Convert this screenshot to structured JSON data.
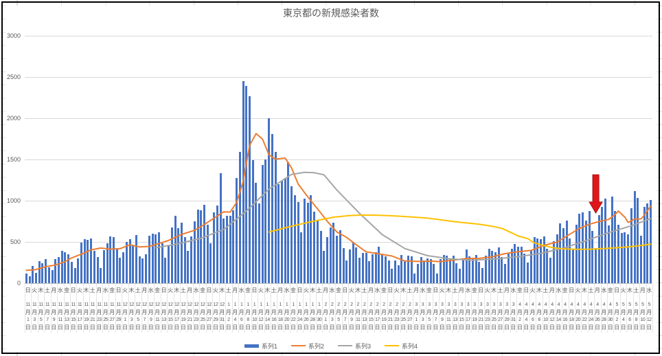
{
  "title": "東京都の新規感染者数",
  "y_axis": {
    "max": 3000,
    "ticks": [
      0,
      500,
      1000,
      1500,
      2000,
      2500,
      3000
    ]
  },
  "x_axis": {
    "month_unit": "月",
    "day_unit": "日"
  },
  "x_labels": [
    [
      "日",
      "11",
      "1"
    ],
    [
      "火",
      "11",
      "3"
    ],
    [
      "木",
      "11",
      "5"
    ],
    [
      "土",
      "11",
      "7"
    ],
    [
      "月",
      "11",
      "9"
    ],
    [
      "水",
      "11",
      "11"
    ],
    [
      "金",
      "11",
      "13"
    ],
    [
      "日",
      "11",
      "15"
    ],
    [
      "火",
      "11",
      "17"
    ],
    [
      "木",
      "11",
      "19"
    ],
    [
      "土",
      "11",
      "21"
    ],
    [
      "月",
      "11",
      "23"
    ],
    [
      "水",
      "11",
      "25"
    ],
    [
      "金",
      "11",
      "27"
    ],
    [
      "日",
      "11",
      "29"
    ],
    [
      "火",
      "12",
      "1"
    ],
    [
      "木",
      "12",
      "3"
    ],
    [
      "土",
      "12",
      "5"
    ],
    [
      "月",
      "12",
      "7"
    ],
    [
      "水",
      "12",
      "9"
    ],
    [
      "金",
      "12",
      "11"
    ],
    [
      "日",
      "12",
      "13"
    ],
    [
      "火",
      "12",
      "15"
    ],
    [
      "木",
      "12",
      "17"
    ],
    [
      "土",
      "12",
      "19"
    ],
    [
      "月",
      "12",
      "21"
    ],
    [
      "水",
      "12",
      "23"
    ],
    [
      "金",
      "12",
      "25"
    ],
    [
      "日",
      "12",
      "27"
    ],
    [
      "火",
      "12",
      "29"
    ],
    [
      "木",
      "12",
      "31"
    ],
    [
      "土",
      "1",
      "2"
    ],
    [
      "月",
      "1",
      "4"
    ],
    [
      "水",
      "1",
      "6"
    ],
    [
      "金",
      "1",
      "8"
    ],
    [
      "日",
      "1",
      "10"
    ],
    [
      "火",
      "1",
      "12"
    ],
    [
      "木",
      "1",
      "14"
    ],
    [
      "土",
      "1",
      "16"
    ],
    [
      "月",
      "1",
      "18"
    ],
    [
      "水",
      "1",
      "20"
    ],
    [
      "金",
      "1",
      "22"
    ],
    [
      "日",
      "1",
      "24"
    ],
    [
      "火",
      "1",
      "26"
    ],
    [
      "木",
      "1",
      "28"
    ],
    [
      "土",
      "1",
      "30"
    ],
    [
      "月",
      "2",
      "1"
    ],
    [
      "水",
      "2",
      "3"
    ],
    [
      "金",
      "2",
      "5"
    ],
    [
      "日",
      "2",
      "7"
    ],
    [
      "火",
      "2",
      "9"
    ],
    [
      "木",
      "2",
      "11"
    ],
    [
      "土",
      "2",
      "13"
    ],
    [
      "月",
      "2",
      "15"
    ],
    [
      "水",
      "2",
      "17"
    ],
    [
      "金",
      "2",
      "19"
    ],
    [
      "日",
      "2",
      "21"
    ],
    [
      "火",
      "2",
      "23"
    ],
    [
      "木",
      "2",
      "25"
    ],
    [
      "土",
      "2",
      "27"
    ],
    [
      "月",
      "3",
      "1"
    ],
    [
      "水",
      "3",
      "3"
    ],
    [
      "金",
      "3",
      "5"
    ],
    [
      "日",
      "3",
      "7"
    ],
    [
      "火",
      "3",
      "9"
    ],
    [
      "木",
      "3",
      "11"
    ],
    [
      "土",
      "3",
      "13"
    ],
    [
      "月",
      "3",
      "15"
    ],
    [
      "水",
      "3",
      "17"
    ],
    [
      "金",
      "3",
      "19"
    ],
    [
      "日",
      "3",
      "21"
    ],
    [
      "火",
      "3",
      "23"
    ],
    [
      "木",
      "3",
      "25"
    ],
    [
      "土",
      "3",
      "27"
    ],
    [
      "月",
      "3",
      "29"
    ],
    [
      "水",
      "3",
      "31"
    ],
    [
      "金",
      "4",
      "2"
    ],
    [
      "日",
      "4",
      "4"
    ],
    [
      "火",
      "4",
      "6"
    ],
    [
      "木",
      "4",
      "8"
    ],
    [
      "土",
      "4",
      "10"
    ],
    [
      "月",
      "4",
      "12"
    ],
    [
      "水",
      "4",
      "14"
    ],
    [
      "金",
      "4",
      "16"
    ],
    [
      "日",
      "4",
      "18"
    ],
    [
      "火",
      "4",
      "20"
    ],
    [
      "木",
      "4",
      "22"
    ],
    [
      "土",
      "4",
      "24"
    ],
    [
      "月",
      "4",
      "26"
    ],
    [
      "水",
      "4",
      "28"
    ],
    [
      "金",
      "4",
      "30"
    ],
    [
      "日",
      "5",
      "2"
    ],
    [
      "火",
      "5",
      "4"
    ],
    [
      "木",
      "5",
      "6"
    ],
    [
      "土",
      "5",
      "8"
    ],
    [
      "月",
      "5",
      "10"
    ],
    [
      "水",
      "5",
      "12"
    ]
  ],
  "legend": [
    {
      "label": "系列1",
      "type": "bar",
      "color": "#4472C4"
    },
    {
      "label": "系列2",
      "type": "line",
      "color": "#ED7D31"
    },
    {
      "label": "系列3",
      "type": "line",
      "color": "#A5A5A5"
    },
    {
      "label": "系列4",
      "type": "line",
      "color": "#FFC000"
    }
  ],
  "chart_data": {
    "type": "combo-bar-line",
    "title": "東京都の新規感染者数",
    "x_start_label": "11月1日(日)",
    "x_end_label": "5月12日(水)",
    "x_interval": "daily, labels every 2nd day",
    "n_points": 194,
    "ylim": [
      0,
      3000
    ],
    "ytick_step": 500,
    "grid": "horizontal only",
    "legend_position": "bottom center",
    "series": [
      {
        "name": "系列1",
        "type": "bar",
        "color": "#4472C4",
        "values": [
          116,
          87,
          209,
          122,
          269,
          242,
          294,
          189,
          157,
          293,
          317,
          393,
          374,
          352,
          255,
          180,
          298,
          493,
          534,
          522,
          539,
          391,
          314,
          186,
          401,
          481,
          570,
          561,
          418,
          311,
          372,
          500,
          533,
          449,
          584,
          327,
          299,
          352,
          572,
          602,
          595,
          621,
          480,
          305,
          460,
          678,
          821,
          664,
          736,
          556,
          392,
          563,
          748,
          888,
          884,
          949,
          708,
          481,
          856,
          944,
          1337,
          783,
          814,
          816,
          884,
          1278,
          1591,
          2447,
          2392,
          2268,
          1494,
          1219,
          970,
          1433,
          1502,
          2001,
          1809,
          1592,
          1204,
          1240,
          1274,
          1471,
          1175,
          1070,
          986,
          618,
          1026,
          973,
          1064,
          868,
          769,
          633,
          393,
          556,
          676,
          734,
          577,
          639,
          429,
          276,
          412,
          491,
          434,
          307,
          369,
          371,
          266,
          350,
          378,
          445,
          353,
          327,
          272,
          178,
          275,
          213,
          340,
          270,
          337,
          329,
          121,
          232,
          316,
          279,
          301,
          293,
          237,
          116,
          290,
          340,
          335,
          304,
          330,
          239,
          175,
          300,
          409,
          323,
          303,
          342,
          256,
          187,
          337,
          420,
          394,
          376,
          430,
          313,
          234,
          364,
          414,
          475,
          440,
          446,
          355,
          249,
          399,
          555,
          545,
          537,
          570,
          421,
          306,
          510,
          591,
          729,
          667,
          759,
          543,
          405,
          711,
          843,
          861,
          759,
          876,
          635,
          425,
          828,
          925,
          1027,
          698,
          1050,
          879,
          708,
          609,
          621,
          591,
          907,
          1121,
          1032,
          573,
          925,
          969,
          1010
        ]
      },
      {
        "name": "系列2",
        "type": "line",
        "color": "#ED7D31",
        "points": [
          [
            0,
            155
          ],
          [
            3,
            165
          ],
          [
            6,
            200
          ],
          [
            9,
            220
          ],
          [
            12,
            262
          ],
          [
            14,
            306
          ],
          [
            17,
            352
          ],
          [
            20,
            403
          ],
          [
            23,
            426
          ],
          [
            26,
            412
          ],
          [
            29,
            418
          ],
          [
            32,
            466
          ],
          [
            35,
            439
          ],
          [
            38,
            445
          ],
          [
            41,
            481
          ],
          [
            44,
            519
          ],
          [
            48,
            592
          ],
          [
            52,
            640
          ],
          [
            55,
            711
          ],
          [
            58,
            788
          ],
          [
            61,
            865
          ],
          [
            63,
            862
          ],
          [
            65,
            979
          ],
          [
            67,
            1230
          ],
          [
            69,
            1668
          ],
          [
            71,
            1813
          ],
          [
            73,
            1746
          ],
          [
            75,
            1555
          ],
          [
            77,
            1504
          ],
          [
            80,
            1517
          ],
          [
            82,
            1395
          ],
          [
            84,
            1203
          ],
          [
            87,
            1046
          ],
          [
            90,
            901
          ],
          [
            93,
            751
          ],
          [
            96,
            620
          ],
          [
            99,
            555
          ],
          [
            102,
            465
          ],
          [
            105,
            380
          ],
          [
            109,
            355
          ],
          [
            113,
            329
          ],
          [
            117,
            268
          ],
          [
            121,
            263
          ],
          [
            125,
            267
          ],
          [
            128,
            262
          ],
          [
            132,
            279
          ],
          [
            136,
            299
          ],
          [
            140,
            301
          ],
          [
            144,
            320
          ],
          [
            148,
            358
          ],
          [
            152,
            381
          ],
          [
            156,
            397
          ],
          [
            160,
            459
          ],
          [
            164,
            497
          ],
          [
            167,
            569
          ],
          [
            171,
            665
          ],
          [
            174,
            714
          ],
          [
            177,
            747
          ],
          [
            180,
            773
          ],
          [
            182,
            833
          ],
          [
            183,
            874
          ],
          [
            185,
            799
          ],
          [
            186,
            737
          ],
          [
            188,
            777
          ],
          [
            190,
            779
          ],
          [
            191,
            824
          ],
          [
            193,
            934
          ]
        ]
      },
      {
        "name": "系列3",
        "type": "line",
        "color": "#A5A5A5",
        "points": [
          [
            40,
            428
          ],
          [
            47,
            478
          ],
          [
            54,
            545
          ],
          [
            61,
            650
          ],
          [
            68,
            873
          ],
          [
            75,
            1140
          ],
          [
            82,
            1319
          ],
          [
            86,
            1344
          ],
          [
            89,
            1339
          ],
          [
            92,
            1313
          ],
          [
            96,
            1128
          ],
          [
            103,
            846
          ],
          [
            110,
            588
          ],
          [
            117,
            419
          ],
          [
            124,
            333
          ],
          [
            131,
            294
          ],
          [
            138,
            278
          ],
          [
            145,
            294
          ],
          [
            152,
            321
          ],
          [
            159,
            362
          ],
          [
            166,
            424
          ],
          [
            173,
            515
          ],
          [
            180,
            613
          ],
          [
            187,
            695
          ],
          [
            193,
            784
          ]
        ]
      },
      {
        "name": "系列4",
        "type": "line",
        "color": "#FFC000",
        "points": [
          [
            75,
            620
          ],
          [
            80,
            672
          ],
          [
            85,
            718
          ],
          [
            90,
            762
          ],
          [
            95,
            800
          ],
          [
            100,
            820
          ],
          [
            104,
            826
          ],
          [
            108,
            824
          ],
          [
            112,
            818
          ],
          [
            116,
            810
          ],
          [
            120,
            800
          ],
          [
            124,
            788
          ],
          [
            128,
            768
          ],
          [
            132,
            747
          ],
          [
            136,
            730
          ],
          [
            140,
            714
          ],
          [
            144,
            690
          ],
          [
            147,
            664
          ],
          [
            150,
            610
          ],
          [
            152,
            572
          ],
          [
            155,
            539
          ],
          [
            157,
            489
          ],
          [
            160,
            455
          ],
          [
            163,
            428
          ],
          [
            166,
            416
          ],
          [
            170,
            410
          ],
          [
            174,
            412
          ],
          [
            178,
            418
          ],
          [
            182,
            428
          ],
          [
            186,
            440
          ],
          [
            189,
            452
          ],
          [
            191,
            462
          ],
          [
            193,
            473
          ]
        ]
      }
    ],
    "annotation": {
      "shape": "down-arrow",
      "color": "#E0161B",
      "outline": "#A61015",
      "at_index": 176,
      "top_value": 1315,
      "head_value": 983,
      "tip_value": 850
    }
  }
}
